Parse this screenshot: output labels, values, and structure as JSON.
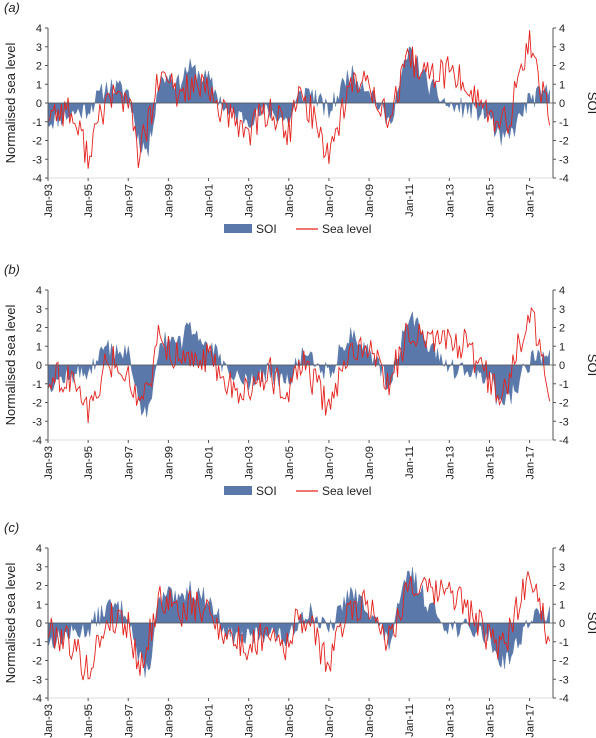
{
  "figure": {
    "shared": {
      "type": "area+line",
      "x_start": "Jan-93",
      "x_end": "Mar-18",
      "x_tick_labels": [
        "Jan-93",
        "Jan-95",
        "Jan-97",
        "Jan-99",
        "Jan-01",
        "Jan-03",
        "Jan-05",
        "Jan-07",
        "Jan-09",
        "Jan-11",
        "Jan-13",
        "Jan-15",
        "Jan-17"
      ],
      "y_left_label": "Normalised sea level",
      "y_right_label": "SOI",
      "y_left_range": [
        -4,
        4
      ],
      "y_right_range": [
        -4,
        4
      ],
      "y_ticks": [
        4,
        3,
        2,
        1,
        0,
        -1,
        -2,
        -3,
        -4
      ],
      "legend_placement": "bottom-center",
      "grid": false,
      "colors": {
        "soi": "#5a78aa",
        "sea_level": "#e4231e",
        "axis": "#555555"
      }
    }
  },
  "chart_data": [
    {
      "panel_label": "(a)",
      "type": "area+line",
      "x_tick_labels": [
        "Jan-93",
        "Jan-95",
        "Jan-97",
        "Jan-99",
        "Jan-01",
        "Jan-03",
        "Jan-05",
        "Jan-07",
        "Jan-09",
        "Jan-11",
        "Jan-13",
        "Jan-15",
        "Jan-17"
      ],
      "ylabel_left": "Normalised sea level",
      "ylabel_right": "SOI",
      "ylim": [
        -4,
        4
      ],
      "legend": [
        "SOI",
        "Sea level"
      ],
      "series": [
        {
          "name": "SOI",
          "kind": "area",
          "x": [
            "Jan-93",
            "Jan-94",
            "Jan-95",
            "Jan-96",
            "Jan-97",
            "Jul-97",
            "Jan-98",
            "Jul-98",
            "Jan-99",
            "Jul-99",
            "Jan-00",
            "Jan-01",
            "Jan-02",
            "Jan-03",
            "Jan-04",
            "Jan-05",
            "Jul-05",
            "Jan-06",
            "Jan-07",
            "Jan-08",
            "Jan-09",
            "Jan-10",
            "Jan-11",
            "Jan-12",
            "Jan-13",
            "Jan-14",
            "Jan-15",
            "Jul-15",
            "Jan-16",
            "Jan-17",
            "Jan-18"
          ],
          "values": [
            -1.0,
            -0.6,
            -0.3,
            0.9,
            0.6,
            -1.9,
            -2.6,
            1.0,
            1.5,
            1.0,
            1.9,
            1.2,
            -0.6,
            -0.8,
            -0.4,
            -1.0,
            0.3,
            0.7,
            -0.5,
            1.6,
            0.8,
            -1.1,
            2.8,
            0.9,
            -0.2,
            -0.3,
            -0.7,
            -2.0,
            -1.8,
            0.2,
            0.6
          ]
        },
        {
          "name": "Sea level",
          "kind": "line",
          "x": [
            "Jan-93",
            "Jan-94",
            "Jan-95",
            "Jan-96",
            "Jan-97",
            "Jul-97",
            "Jan-98",
            "Jul-98",
            "Jan-99",
            "Jul-99",
            "Jan-00",
            "Jan-01",
            "Jan-02",
            "Jan-03",
            "Jan-04",
            "Jan-05",
            "Jul-05",
            "Jan-06",
            "Jan-07",
            "Jan-08",
            "Jan-09",
            "Jan-10",
            "Jan-11",
            "Jan-12",
            "Jan-13",
            "Jan-14",
            "Jan-15",
            "Jul-15",
            "Jan-16",
            "Jan-17",
            "Jan-18"
          ],
          "values": [
            -0.5,
            -0.3,
            -2.7,
            0.4,
            0.2,
            -2.7,
            -1.2,
            1.1,
            1.2,
            0.3,
            1.0,
            0.5,
            -0.8,
            -1.5,
            -0.3,
            -1.6,
            0.4,
            -0.2,
            -2.7,
            0.8,
            1.2,
            -1.0,
            2.3,
            1.4,
            1.7,
            0.8,
            -0.6,
            -1.5,
            -0.7,
            3.3,
            -0.8
          ]
        }
      ]
    },
    {
      "panel_label": "(b)",
      "type": "area+line",
      "x_tick_labels": [
        "Jan-93",
        "Jan-95",
        "Jan-97",
        "Jan-99",
        "Jan-01",
        "Jan-03",
        "Jan-05",
        "Jan-07",
        "Jan-09",
        "Jan-11",
        "Jan-13",
        "Jan-15",
        "Jan-17"
      ],
      "ylabel_left": "Normalised sea level",
      "ylabel_right": "SOI",
      "ylim": [
        -4,
        4
      ],
      "legend": [
        "SOI",
        "Sea level"
      ],
      "series": [
        {
          "name": "SOI",
          "kind": "area",
          "x": [
            "Jan-93",
            "Jan-94",
            "Jan-95",
            "Jan-96",
            "Jan-97",
            "Jul-97",
            "Jan-98",
            "Jul-98",
            "Jan-99",
            "Jul-99",
            "Jan-00",
            "Jan-01",
            "Jan-02",
            "Jan-03",
            "Jan-04",
            "Jan-05",
            "Jul-05",
            "Jan-06",
            "Jan-07",
            "Jan-08",
            "Jan-09",
            "Jan-10",
            "Jan-11",
            "Jan-12",
            "Jan-13",
            "Jan-14",
            "Jan-15",
            "Jul-15",
            "Jan-16",
            "Jan-17",
            "Jan-18"
          ],
          "values": [
            -1.0,
            -0.6,
            -0.3,
            0.9,
            0.6,
            -1.9,
            -2.6,
            1.0,
            1.5,
            1.0,
            1.9,
            1.2,
            -0.6,
            -0.8,
            -0.4,
            -1.0,
            0.3,
            0.7,
            -0.5,
            1.6,
            0.8,
            -1.1,
            2.8,
            0.9,
            -0.2,
            -0.3,
            -0.7,
            -2.0,
            -1.8,
            0.2,
            0.6
          ]
        },
        {
          "name": "Sea level",
          "kind": "line",
          "x": [
            "Jan-93",
            "Jan-94",
            "Jan-95",
            "Jan-96",
            "Jan-97",
            "Jul-97",
            "Jan-98",
            "Jul-98",
            "Jan-99",
            "Jul-99",
            "Jan-00",
            "Jan-01",
            "Jan-02",
            "Jan-03",
            "Jan-04",
            "Jan-05",
            "Jul-05",
            "Jan-06",
            "Jan-07",
            "Jan-08",
            "Jan-09",
            "Jan-10",
            "Jan-11",
            "Jan-12",
            "Jan-13",
            "Jan-14",
            "Jan-15",
            "Jul-15",
            "Jan-16",
            "Jan-17",
            "Jan-18"
          ],
          "values": [
            -0.8,
            -0.6,
            -2.5,
            0.2,
            -0.1,
            -2.4,
            -1.3,
            1.3,
            1.0,
            0.2,
            0.8,
            0.4,
            -0.9,
            -1.6,
            -0.4,
            -1.5,
            0.2,
            -0.4,
            -2.4,
            0.7,
            1.1,
            -1.1,
            2.1,
            1.3,
            1.5,
            0.9,
            -0.8,
            -1.6,
            -0.6,
            3.1,
            -1.7
          ]
        }
      ]
    },
    {
      "panel_label": "(c)",
      "type": "area+line",
      "x_tick_labels": [
        "Jan-93",
        "Jan-95",
        "Jan-97",
        "Jan-99",
        "Jan-01",
        "Jan-03",
        "Jan-05",
        "Jan-07",
        "Jan-09",
        "Jan-11",
        "Jan-13",
        "Jan-15",
        "Jan-17"
      ],
      "ylabel_left": "Normalised sea level",
      "ylabel_right": "SOI",
      "ylim": [
        -4,
        4
      ],
      "legend": [
        "SOI",
        "Sea level"
      ],
      "series": [
        {
          "name": "SOI",
          "kind": "area",
          "x": [
            "Jan-93",
            "Jan-94",
            "Jan-95",
            "Jan-96",
            "Jan-97",
            "Jul-97",
            "Jan-98",
            "Jul-98",
            "Jan-99",
            "Jul-99",
            "Jan-00",
            "Jan-01",
            "Jan-02",
            "Jan-03",
            "Jan-04",
            "Jan-05",
            "Jul-05",
            "Jan-06",
            "Jan-07",
            "Jan-08",
            "Jan-09",
            "Jan-10",
            "Jan-11",
            "Jan-12",
            "Jan-13",
            "Jan-14",
            "Jan-15",
            "Jul-15",
            "Jan-16",
            "Jan-17",
            "Jan-18"
          ],
          "values": [
            -1.0,
            -0.6,
            -0.3,
            0.9,
            0.6,
            -1.9,
            -2.6,
            1.0,
            1.5,
            1.0,
            1.9,
            1.2,
            -0.6,
            -0.8,
            -0.4,
            -1.0,
            0.3,
            0.7,
            -0.5,
            1.6,
            0.8,
            -1.1,
            2.8,
            0.9,
            -0.2,
            -0.3,
            -0.7,
            -2.0,
            -1.8,
            0.2,
            0.6
          ]
        },
        {
          "name": "Sea level",
          "kind": "line",
          "x": [
            "Jan-93",
            "Jan-94",
            "Jan-95",
            "Jan-96",
            "Jan-97",
            "Jul-97",
            "Jan-98",
            "Jul-98",
            "Jan-99",
            "Jul-99",
            "Jan-00",
            "Jan-01",
            "Jan-02",
            "Jan-03",
            "Jan-04",
            "Jan-05",
            "Jul-05",
            "Jan-06",
            "Jan-07",
            "Jan-08",
            "Jan-09",
            "Jan-10",
            "Jan-11",
            "Jan-12",
            "Jan-13",
            "Jan-14",
            "Jan-15",
            "Jul-15",
            "Jan-16",
            "Jan-17",
            "Jan-18"
          ],
          "values": [
            -0.4,
            -0.8,
            -2.6,
            0.3,
            0.0,
            -2.3,
            -1.0,
            1.2,
            1.3,
            0.4,
            0.9,
            0.6,
            -0.7,
            -1.4,
            -0.2,
            -1.3,
            0.5,
            -0.1,
            -2.2,
            0.9,
            1.0,
            -0.9,
            2.2,
            1.5,
            1.8,
            0.7,
            -0.9,
            -1.4,
            -0.5,
            2.9,
            -0.9
          ]
        }
      ]
    }
  ]
}
